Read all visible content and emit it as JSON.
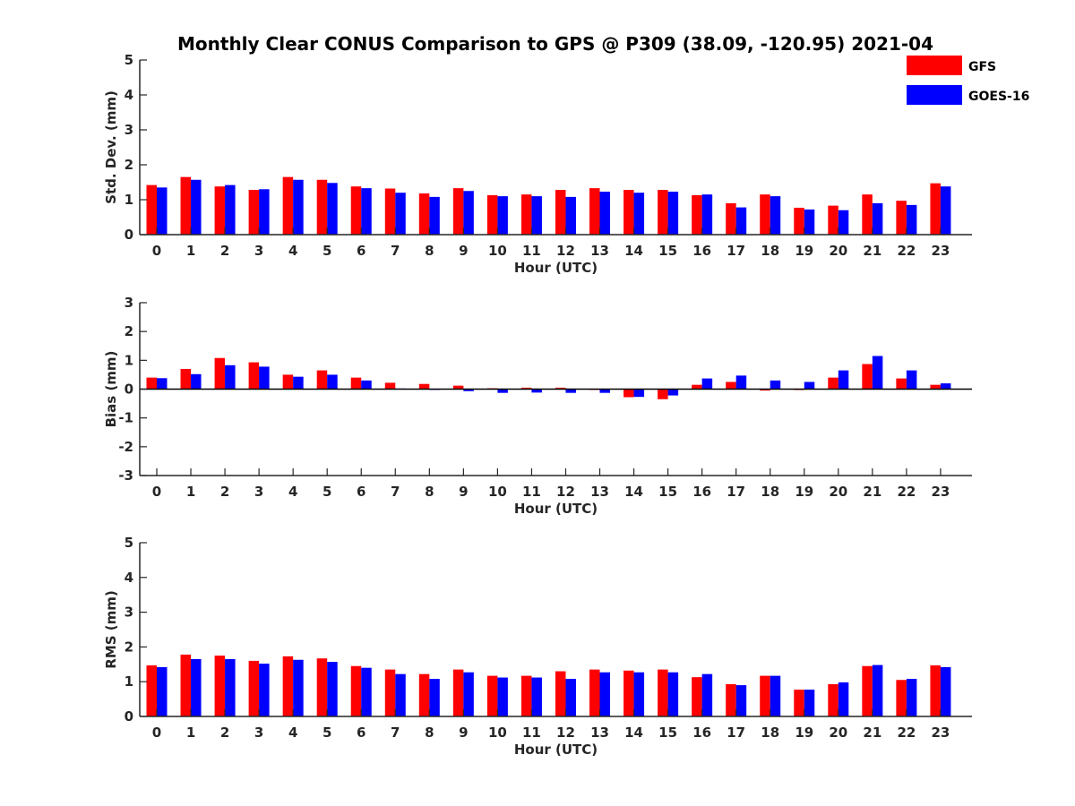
{
  "figure": {
    "title": "Monthly Clear CONUS Comparison to GPS @ P309 (38.09, -120.95) 2021-04",
    "legend": {
      "placement": "top-right",
      "entries": [
        {
          "label": "GFS",
          "color": "#ff0000"
        },
        {
          "label": "GOES-16",
          "color": "#0000ff"
        }
      ]
    }
  },
  "chart_data": [
    {
      "type": "bar",
      "xlabel": "Hour (UTC)",
      "ylabel": "Std. Dev. (mm)",
      "ylim": [
        0,
        5
      ],
      "yticks": [
        0,
        1,
        2,
        3,
        4,
        5
      ],
      "categories": [
        "0",
        "1",
        "2",
        "3",
        "4",
        "5",
        "6",
        "7",
        "8",
        "9",
        "10",
        "11",
        "12",
        "13",
        "14",
        "15",
        "16",
        "17",
        "18",
        "19",
        "20",
        "21",
        "22",
        "23"
      ],
      "series": [
        {
          "name": "GFS",
          "color": "#ff0000",
          "values": [
            1.42,
            1.65,
            1.38,
            1.28,
            1.65,
            1.57,
            1.38,
            1.32,
            1.18,
            1.33,
            1.13,
            1.15,
            1.28,
            1.33,
            1.28,
            1.28,
            1.13,
            0.9,
            1.15,
            0.77,
            0.83,
            1.15,
            0.97,
            1.47
          ]
        },
        {
          "name": "GOES-16",
          "color": "#0000ff",
          "values": [
            1.35,
            1.57,
            1.42,
            1.3,
            1.57,
            1.48,
            1.33,
            1.2,
            1.08,
            1.25,
            1.1,
            1.1,
            1.08,
            1.23,
            1.2,
            1.23,
            1.15,
            0.78,
            1.1,
            0.72,
            0.7,
            0.9,
            0.85,
            1.38
          ]
        }
      ]
    },
    {
      "type": "bar",
      "xlabel": "Hour (UTC)",
      "ylabel": "Bias (mm)",
      "ylim": [
        -3,
        3
      ],
      "yticks": [
        -3,
        -2,
        -1,
        0,
        1,
        2,
        3
      ],
      "categories": [
        "0",
        "1",
        "2",
        "3",
        "4",
        "5",
        "6",
        "7",
        "8",
        "9",
        "10",
        "11",
        "12",
        "13",
        "14",
        "15",
        "16",
        "17",
        "18",
        "19",
        "20",
        "21",
        "22",
        "23"
      ],
      "series": [
        {
          "name": "GFS",
          "color": "#ff0000",
          "values": [
            0.4,
            0.7,
            1.08,
            0.93,
            0.5,
            0.65,
            0.4,
            0.22,
            0.18,
            0.12,
            0.03,
            0.05,
            0.05,
            0.0,
            -0.28,
            -0.35,
            0.15,
            0.25,
            -0.05,
            -0.03,
            0.4,
            0.87,
            0.37,
            0.15
          ]
        },
        {
          "name": "GOES-16",
          "color": "#0000ff",
          "values": [
            0.38,
            0.52,
            0.83,
            0.78,
            0.43,
            0.5,
            0.3,
            0.02,
            0.0,
            -0.07,
            -0.13,
            -0.12,
            -0.13,
            -0.13,
            -0.27,
            -0.22,
            0.37,
            0.47,
            0.3,
            0.25,
            0.65,
            1.15,
            0.65,
            0.2
          ]
        }
      ]
    },
    {
      "type": "bar",
      "xlabel": "Hour (UTC)",
      "ylabel": "RMS (mm)",
      "ylim": [
        0,
        5
      ],
      "yticks": [
        0,
        1,
        2,
        3,
        4,
        5
      ],
      "categories": [
        "0",
        "1",
        "2",
        "3",
        "4",
        "5",
        "6",
        "7",
        "8",
        "9",
        "10",
        "11",
        "12",
        "13",
        "14",
        "15",
        "16",
        "17",
        "18",
        "19",
        "20",
        "21",
        "22",
        "23"
      ],
      "series": [
        {
          "name": "GFS",
          "color": "#ff0000",
          "values": [
            1.47,
            1.78,
            1.75,
            1.6,
            1.73,
            1.67,
            1.45,
            1.35,
            1.22,
            1.35,
            1.17,
            1.17,
            1.3,
            1.35,
            1.32,
            1.35,
            1.13,
            0.93,
            1.17,
            0.77,
            0.93,
            1.45,
            1.05,
            1.47
          ]
        },
        {
          "name": "GOES-16",
          "color": "#0000ff",
          "values": [
            1.42,
            1.65,
            1.65,
            1.52,
            1.63,
            1.57,
            1.4,
            1.22,
            1.08,
            1.27,
            1.12,
            1.12,
            1.08,
            1.27,
            1.27,
            1.27,
            1.22,
            0.9,
            1.17,
            0.77,
            0.98,
            1.48,
            1.08,
            1.42
          ]
        }
      ]
    }
  ]
}
